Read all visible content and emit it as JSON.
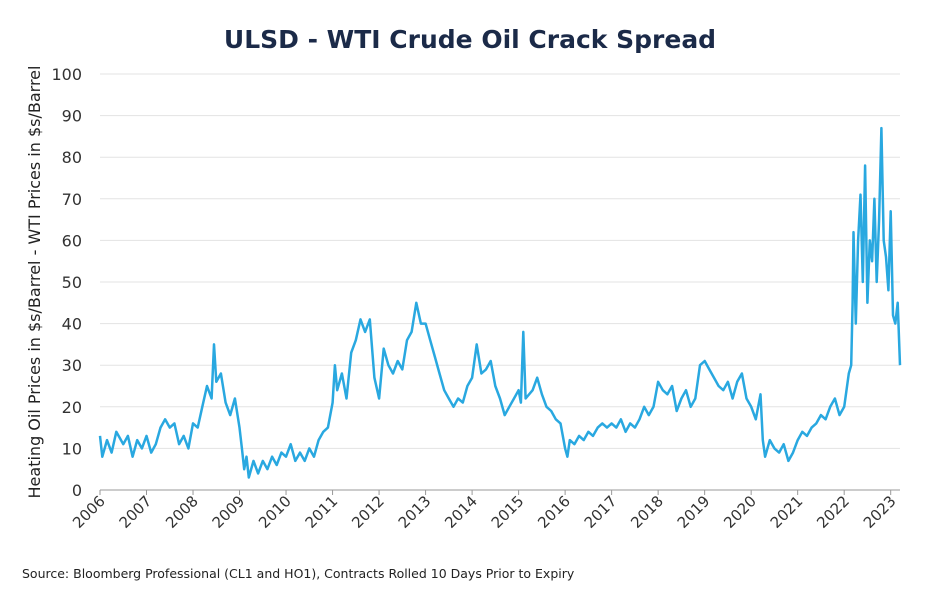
{
  "chart_data": {
    "type": "line",
    "title": "ULSD - WTI Crude Oil Crack Spread",
    "ylabel": "Heating Oil Prices in $s/Barrel - WTI Prices in $s/Barrel",
    "source": "Source: Bloomberg Professional (CL1 and HO1), Contracts Rolled 10 Days Prior to Expiry",
    "color": "#29a8e0",
    "grid": true,
    "xlim": [
      2006,
      2023.2
    ],
    "xticks": [
      2006,
      2007,
      2008,
      2009,
      2010,
      2011,
      2012,
      2013,
      2014,
      2015,
      2016,
      2017,
      2018,
      2019,
      2020,
      2021,
      2022,
      2023
    ],
    "ylim": [
      0,
      100
    ],
    "yticks": [
      0,
      10,
      20,
      30,
      40,
      50,
      60,
      70,
      80,
      90,
      100
    ],
    "x": [
      2006.0,
      2006.05,
      2006.15,
      2006.25,
      2006.35,
      2006.5,
      2006.6,
      2006.7,
      2006.8,
      2006.9,
      2007.0,
      2007.1,
      2007.2,
      2007.3,
      2007.4,
      2007.5,
      2007.6,
      2007.7,
      2007.8,
      2007.9,
      2008.0,
      2008.1,
      2008.2,
      2008.3,
      2008.4,
      2008.45,
      2008.5,
      2008.6,
      2008.7,
      2008.8,
      2008.9,
      2009.0,
      2009.05,
      2009.1,
      2009.15,
      2009.2,
      2009.3,
      2009.4,
      2009.5,
      2009.6,
      2009.7,
      2009.8,
      2009.9,
      2010.0,
      2010.1,
      2010.2,
      2010.3,
      2010.4,
      2010.5,
      2010.6,
      2010.7,
      2010.8,
      2010.9,
      2011.0,
      2011.05,
      2011.1,
      2011.2,
      2011.3,
      2011.4,
      2011.5,
      2011.6,
      2011.7,
      2011.8,
      2011.9,
      2012.0,
      2012.1,
      2012.2,
      2012.3,
      2012.4,
      2012.5,
      2012.6,
      2012.7,
      2012.8,
      2012.9,
      2013.0,
      2013.1,
      2013.2,
      2013.3,
      2013.4,
      2013.5,
      2013.6,
      2013.7,
      2013.8,
      2013.9,
      2014.0,
      2014.1,
      2014.2,
      2014.3,
      2014.4,
      2014.5,
      2014.6,
      2014.7,
      2014.8,
      2014.9,
      2015.0,
      2015.05,
      2015.1,
      2015.15,
      2015.3,
      2015.4,
      2015.5,
      2015.6,
      2015.7,
      2015.8,
      2015.9,
      2016.0,
      2016.05,
      2016.1,
      2016.2,
      2016.3,
      2016.4,
      2016.5,
      2016.6,
      2016.7,
      2016.8,
      2016.9,
      2017.0,
      2017.1,
      2017.2,
      2017.3,
      2017.4,
      2017.5,
      2017.6,
      2017.7,
      2017.8,
      2017.9,
      2018.0,
      2018.1,
      2018.2,
      2018.3,
      2018.4,
      2018.5,
      2018.6,
      2018.7,
      2018.8,
      2018.9,
      2019.0,
      2019.1,
      2019.2,
      2019.3,
      2019.4,
      2019.5,
      2019.6,
      2019.7,
      2019.8,
      2019.9,
      2020.0,
      2020.1,
      2020.2,
      2020.25,
      2020.3,
      2020.4,
      2020.5,
      2020.6,
      2020.7,
      2020.8,
      2020.9,
      2021.0,
      2021.1,
      2021.2,
      2021.3,
      2021.4,
      2021.5,
      2021.6,
      2021.7,
      2021.8,
      2021.9,
      2022.0,
      2022.05,
      2022.1,
      2022.15,
      2022.18,
      2022.2,
      2022.25,
      2022.3,
      2022.35,
      2022.4,
      2022.45,
      2022.5,
      2022.55,
      2022.6,
      2022.65,
      2022.7,
      2022.75,
      2022.8,
      2022.85,
      2022.9,
      2022.95,
      2023.0,
      2023.05,
      2023.1,
      2023.15,
      2023.2
    ],
    "values": [
      13,
      8,
      12,
      9,
      14,
      11,
      13,
      8,
      12,
      10,
      13,
      9,
      11,
      15,
      17,
      15,
      16,
      11,
      13,
      10,
      16,
      15,
      20,
      25,
      22,
      35,
      26,
      28,
      21,
      18,
      22,
      15,
      10,
      5,
      8,
      3,
      7,
      4,
      7,
      5,
      8,
      6,
      9,
      8,
      11,
      7,
      9,
      7,
      10,
      8,
      12,
      14,
      15,
      21,
      30,
      24,
      28,
      22,
      33,
      36,
      41,
      38,
      41,
      27,
      22,
      34,
      30,
      28,
      31,
      29,
      36,
      38,
      45,
      40,
      40,
      36,
      32,
      28,
      24,
      22,
      20,
      22,
      21,
      25,
      27,
      35,
      28,
      29,
      31,
      25,
      22,
      18,
      20,
      22,
      24,
      21,
      38,
      22,
      24,
      27,
      23,
      20,
      19,
      17,
      16,
      10,
      8,
      12,
      11,
      13,
      12,
      14,
      13,
      15,
      16,
      15,
      16,
      15,
      17,
      14,
      16,
      15,
      17,
      20,
      18,
      20,
      26,
      24,
      23,
      25,
      19,
      22,
      24,
      20,
      22,
      30,
      31,
      29,
      27,
      25,
      24,
      26,
      22,
      26,
      28,
      22,
      20,
      17,
      23,
      12,
      8,
      12,
      10,
      9,
      11,
      7,
      9,
      12,
      14,
      13,
      15,
      16,
      18,
      17,
      20,
      22,
      18,
      20,
      24,
      28,
      30,
      45,
      62,
      40,
      60,
      71,
      50,
      78,
      45,
      60,
      55,
      70,
      50,
      65,
      87,
      60,
      56,
      48,
      67,
      42,
      40,
      45,
      30
    ]
  }
}
